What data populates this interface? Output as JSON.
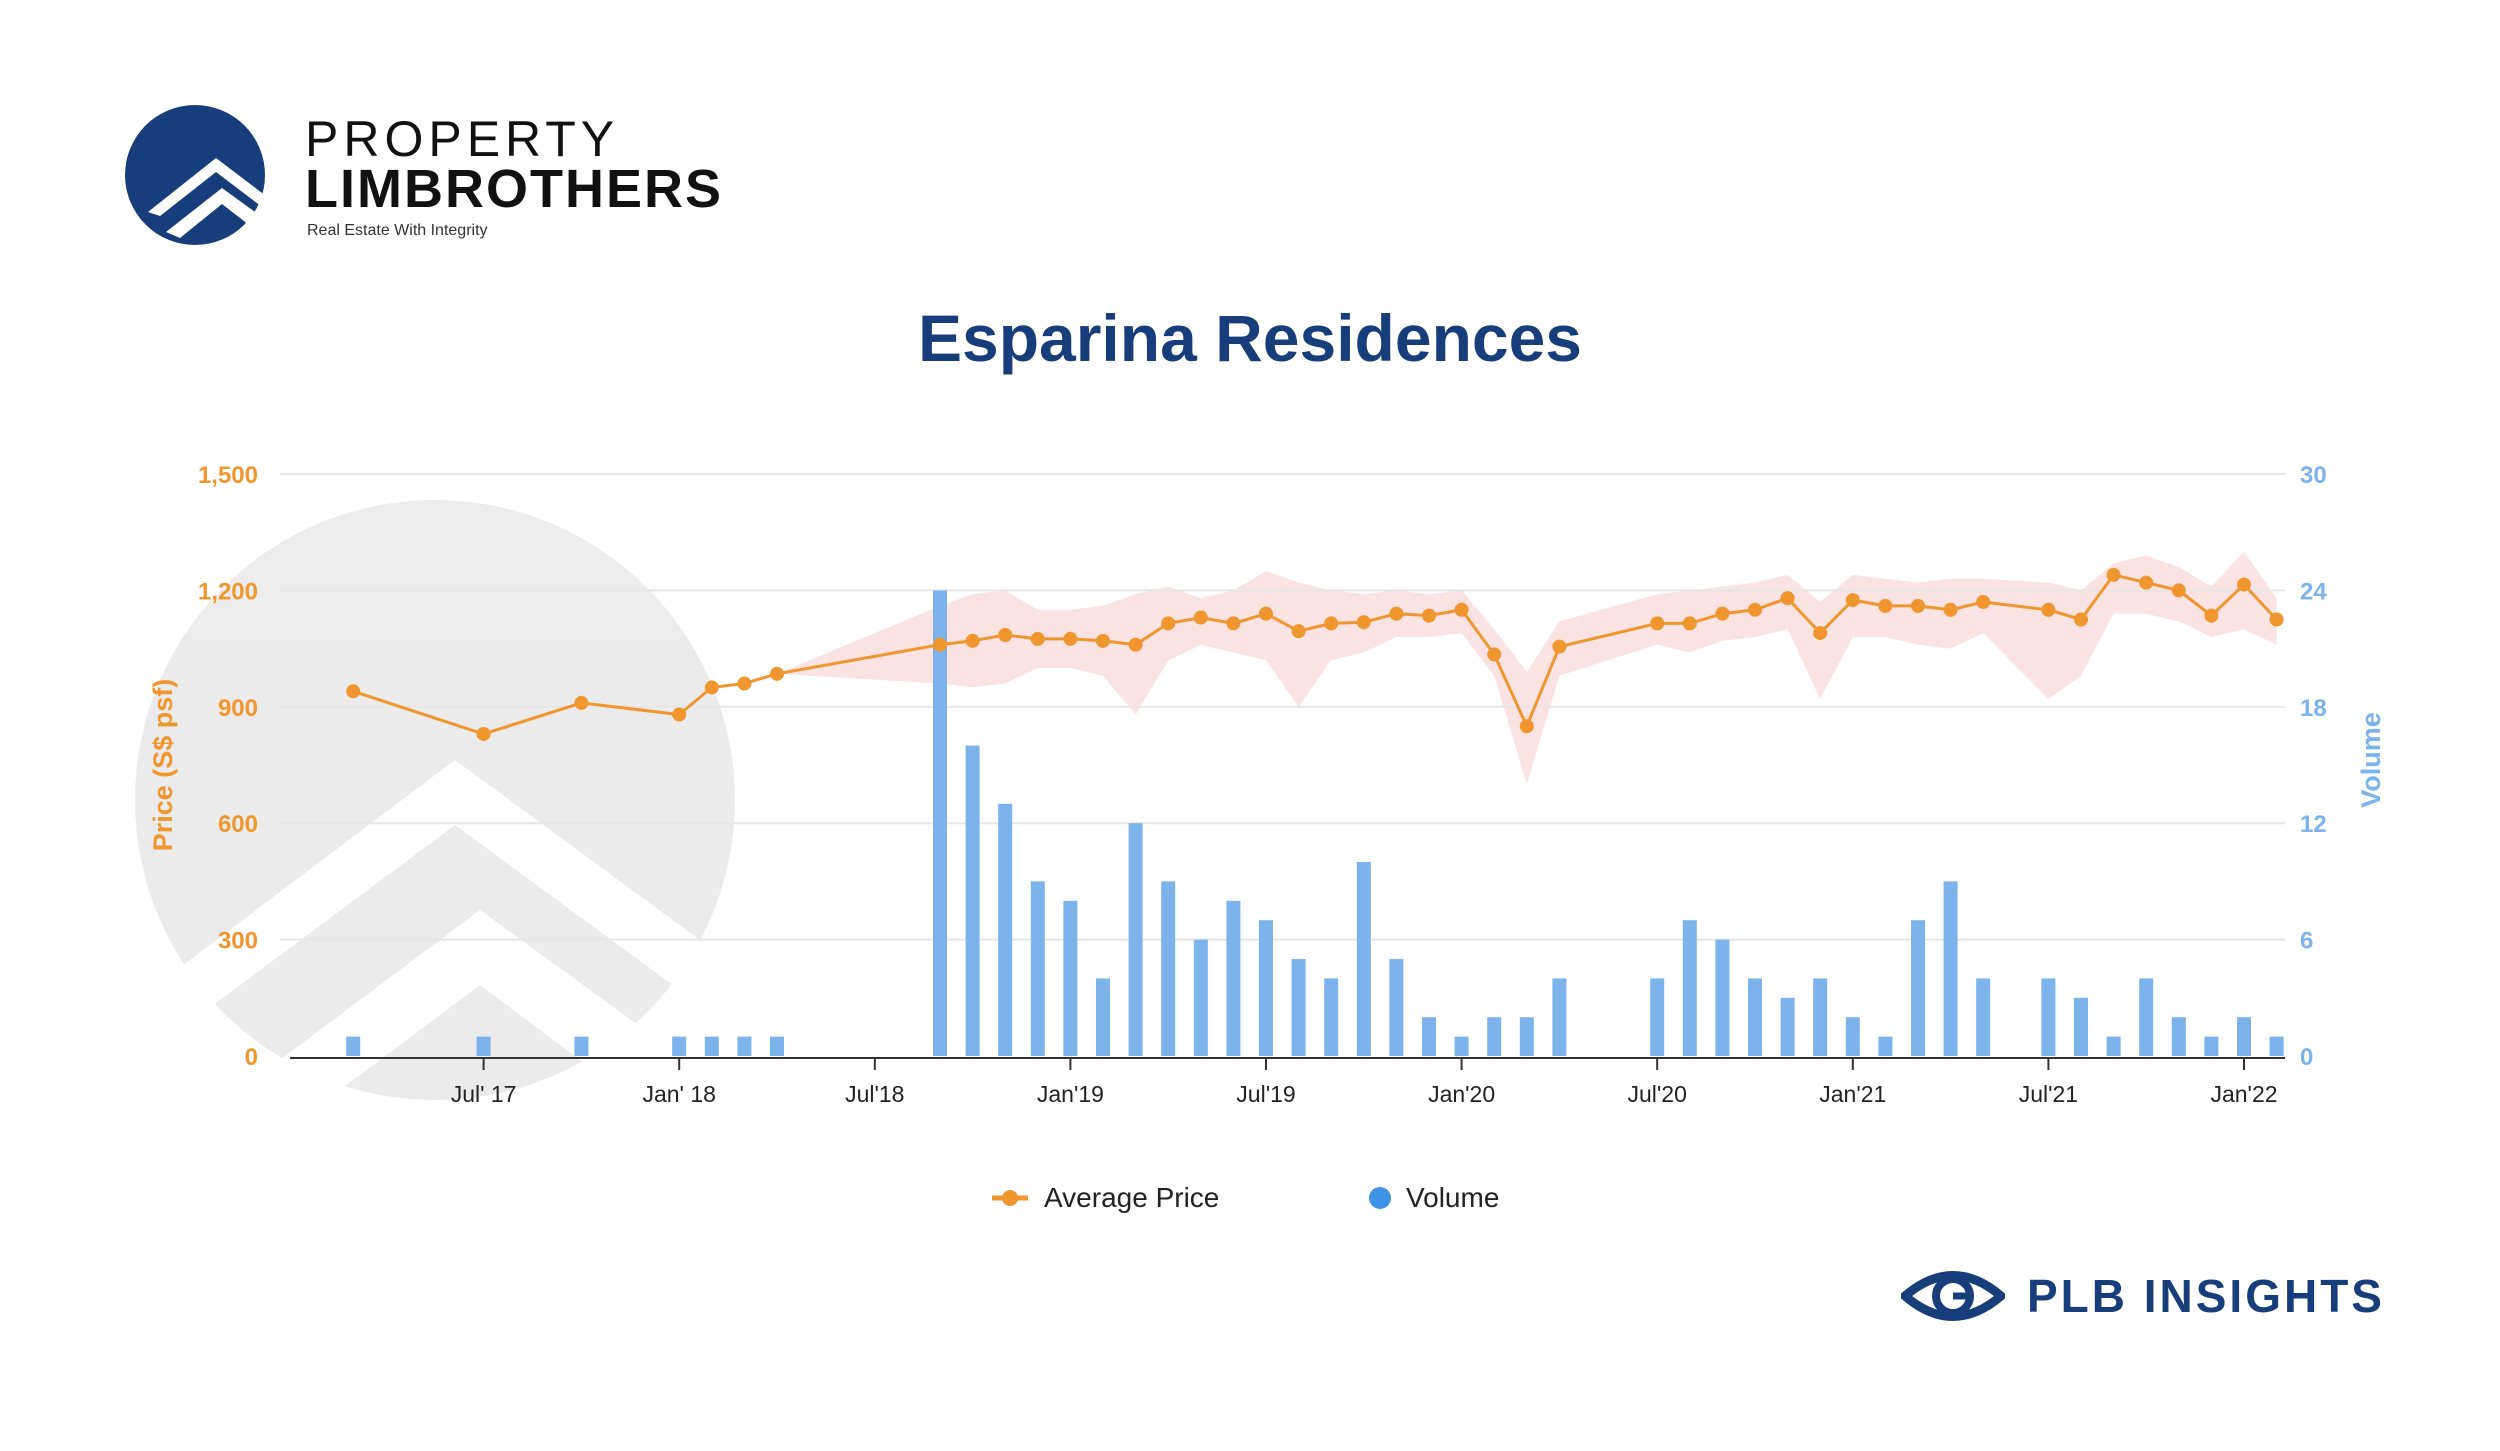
{
  "brand": {
    "name_line1": "PROPERTY",
    "name_line2": "LIMBROTHERS",
    "tagline": "Real Estate With Integrity",
    "footer_name": "PLB INSIGHTS"
  },
  "colors": {
    "price": "#f0962e",
    "volume": "#7bb3ea",
    "band": "#f8cccc",
    "title": "#173d7a",
    "axis_text_left": "#f0962e",
    "axis_text_right": "#7bb3ea"
  },
  "chart_data": {
    "type": "bar",
    "title": "Esparina Residences",
    "xlabel": "",
    "ylabel_left": "Price (S$ psf)",
    "ylabel_right": "Volume",
    "ylim_left": [
      0,
      1500
    ],
    "ylim_right": [
      0,
      30
    ],
    "yticks_left": [
      "0",
      "300",
      "600",
      "900",
      "1,200",
      "1,500"
    ],
    "yticks_right": [
      "0",
      "6",
      "12",
      "18",
      "24",
      "30"
    ],
    "grid": true,
    "legend_position": "bottom-center",
    "x_tick_labels": [
      {
        "month": "2017-07",
        "label": "Jul' 17"
      },
      {
        "month": "2018-01",
        "label": "Jan' 18"
      },
      {
        "month": "2018-07",
        "label": "Jul'18"
      },
      {
        "month": "2019-01",
        "label": "Jan'19"
      },
      {
        "month": "2019-07",
        "label": "Jul'19"
      },
      {
        "month": "2020-01",
        "label": "Jan'20"
      },
      {
        "month": "2020-07",
        "label": "Jul'20"
      },
      {
        "month": "2021-01",
        "label": "Jan'21"
      },
      {
        "month": "2021-07",
        "label": "Jul'21"
      },
      {
        "month": "2022-01",
        "label": "Jan'22"
      }
    ],
    "series": [
      {
        "name": "Average Price",
        "kind": "line",
        "axis": "left",
        "points": [
          [
            "2017-03",
            940
          ],
          [
            "2017-07",
            830
          ],
          [
            "2017-10",
            910
          ],
          [
            "2018-01",
            880
          ],
          [
            "2018-02",
            950
          ],
          [
            "2018-03",
            960
          ],
          [
            "2018-04",
            985
          ],
          [
            "2018-09",
            1060
          ],
          [
            "2018-10",
            1070
          ],
          [
            "2018-11",
            1085
          ],
          [
            "2018-12",
            1075
          ],
          [
            "2019-01",
            1075
          ],
          [
            "2019-02",
            1070
          ],
          [
            "2019-03",
            1060
          ],
          [
            "2019-04",
            1115
          ],
          [
            "2019-05",
            1130
          ],
          [
            "2019-06",
            1115
          ],
          [
            "2019-07",
            1140
          ],
          [
            "2019-08",
            1095
          ],
          [
            "2019-09",
            1115
          ],
          [
            "2019-10",
            1118
          ],
          [
            "2019-11",
            1140
          ],
          [
            "2019-12",
            1135
          ],
          [
            "2020-01",
            1150
          ],
          [
            "2020-02",
            1035
          ],
          [
            "2020-03",
            850
          ],
          [
            "2020-04",
            1055
          ],
          [
            "2020-07",
            1115
          ],
          [
            "2020-08",
            1115
          ],
          [
            "2020-09",
            1140
          ],
          [
            "2020-10",
            1150
          ],
          [
            "2020-11",
            1180
          ],
          [
            "2020-12",
            1090
          ],
          [
            "2021-01",
            1175
          ],
          [
            "2021-02",
            1160
          ],
          [
            "2021-03",
            1160
          ],
          [
            "2021-04",
            1150
          ],
          [
            "2021-05",
            1170
          ],
          [
            "2021-07",
            1150
          ],
          [
            "2021-08",
            1125
          ],
          [
            "2021-09",
            1240
          ],
          [
            "2021-10",
            1220
          ],
          [
            "2021-11",
            1200
          ],
          [
            "2021-12",
            1135
          ],
          [
            "2022-01",
            1215
          ],
          [
            "2022-02",
            1125
          ]
        ]
      },
      {
        "name": "Volume",
        "kind": "bar",
        "axis": "right",
        "points": [
          [
            "2017-03",
            1
          ],
          [
            "2017-07",
            1
          ],
          [
            "2017-10",
            1
          ],
          [
            "2018-01",
            1
          ],
          [
            "2018-02",
            1
          ],
          [
            "2018-03",
            1
          ],
          [
            "2018-04",
            1
          ],
          [
            "2018-09",
            24
          ],
          [
            "2018-10",
            16
          ],
          [
            "2018-11",
            13
          ],
          [
            "2018-12",
            9
          ],
          [
            "2019-01",
            8
          ],
          [
            "2019-02",
            4
          ],
          [
            "2019-03",
            12
          ],
          [
            "2019-04",
            9
          ],
          [
            "2019-05",
            6
          ],
          [
            "2019-06",
            8
          ],
          [
            "2019-07",
            7
          ],
          [
            "2019-08",
            5
          ],
          [
            "2019-09",
            4
          ],
          [
            "2019-10",
            10
          ],
          [
            "2019-11",
            5
          ],
          [
            "2019-12",
            2
          ],
          [
            "2020-01",
            1
          ],
          [
            "2020-02",
            2
          ],
          [
            "2020-03",
            2
          ],
          [
            "2020-04",
            4
          ],
          [
            "2020-07",
            4
          ],
          [
            "2020-08",
            7
          ],
          [
            "2020-09",
            6
          ],
          [
            "2020-10",
            4
          ],
          [
            "2020-11",
            3
          ],
          [
            "2020-12",
            4
          ],
          [
            "2021-01",
            2
          ],
          [
            "2021-02",
            1
          ],
          [
            "2021-03",
            7
          ],
          [
            "2021-04",
            9
          ],
          [
            "2021-05",
            4
          ],
          [
            "2021-07",
            4
          ],
          [
            "2021-08",
            3
          ],
          [
            "2021-09",
            1
          ],
          [
            "2021-10",
            4
          ],
          [
            "2021-11",
            2
          ],
          [
            "2021-12",
            1
          ],
          [
            "2022-01",
            2
          ],
          [
            "2022-02",
            1
          ]
        ]
      }
    ],
    "price_range_band": [
      [
        "2018-04",
        985,
        985
      ],
      [
        "2018-09",
        1160,
        960
      ],
      [
        "2018-10",
        1190,
        950
      ],
      [
        "2018-11",
        1200,
        960
      ],
      [
        "2018-12",
        1150,
        1000
      ],
      [
        "2019-01",
        1150,
        1000
      ],
      [
        "2019-02",
        1160,
        980
      ],
      [
        "2019-03",
        1190,
        880
      ],
      [
        "2019-04",
        1210,
        1020
      ],
      [
        "2019-05",
        1180,
        1060
      ],
      [
        "2019-06",
        1200,
        1040
      ],
      [
        "2019-07",
        1250,
        1020
      ],
      [
        "2019-08",
        1220,
        900
      ],
      [
        "2019-09",
        1200,
        1020
      ],
      [
        "2019-10",
        1190,
        1040
      ],
      [
        "2019-11",
        1200,
        1080
      ],
      [
        "2019-12",
        1190,
        1080
      ],
      [
        "2020-01",
        1200,
        1090
      ],
      [
        "2020-02",
        1100,
        980
      ],
      [
        "2020-03",
        990,
        700
      ],
      [
        "2020-04",
        1120,
        980
      ],
      [
        "2020-07",
        1190,
        1060
      ],
      [
        "2020-08",
        1200,
        1040
      ],
      [
        "2020-09",
        1210,
        1070
      ],
      [
        "2020-10",
        1220,
        1080
      ],
      [
        "2020-11",
        1240,
        1100
      ],
      [
        "2020-12",
        1170,
        920
      ],
      [
        "2021-01",
        1240,
        1080
      ],
      [
        "2021-02",
        1230,
        1080
      ],
      [
        "2021-03",
        1220,
        1060
      ],
      [
        "2021-04",
        1230,
        1050
      ],
      [
        "2021-05",
        1230,
        1090
      ],
      [
        "2021-07",
        1220,
        920
      ],
      [
        "2021-08",
        1200,
        980
      ],
      [
        "2021-09",
        1270,
        1140
      ],
      [
        "2021-10",
        1290,
        1140
      ],
      [
        "2021-11",
        1260,
        1120
      ],
      [
        "2021-12",
        1210,
        1080
      ],
      [
        "2022-01",
        1300,
        1100
      ],
      [
        "2022-02",
        1180,
        1060
      ]
    ]
  }
}
